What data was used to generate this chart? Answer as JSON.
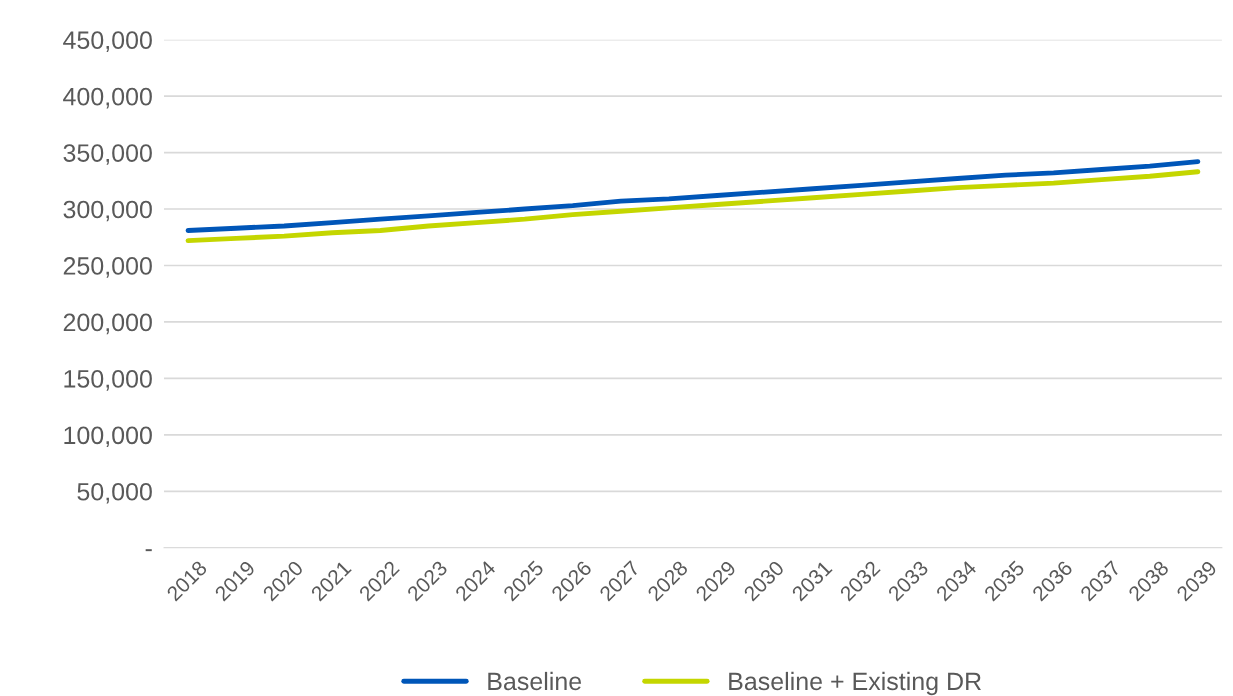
{
  "chart_data": {
    "type": "line",
    "categories": [
      "2018",
      "2019",
      "2020",
      "2021",
      "2022",
      "2023",
      "2024",
      "2025",
      "2026",
      "2027",
      "2028",
      "2029",
      "2030",
      "2031",
      "2032",
      "2033",
      "2034",
      "2035",
      "2036",
      "2037",
      "2038",
      "2039"
    ],
    "series": [
      {
        "name": "Baseline",
        "color": "#0056b8",
        "values": [
          281000,
          283000,
          285000,
          288000,
          291000,
          294000,
          297000,
          300000,
          303000,
          307000,
          309000,
          312000,
          315000,
          318000,
          321000,
          324000,
          327000,
          330000,
          332000,
          335000,
          338000,
          342000
        ]
      },
      {
        "name": "Baseline + Existing DR",
        "color": "#c4d600",
        "values": [
          272000,
          274000,
          276000,
          279000,
          281000,
          285000,
          288000,
          291000,
          295000,
          298000,
          301000,
          304000,
          307000,
          310000,
          313000,
          316000,
          319000,
          321000,
          323000,
          326000,
          329000,
          333000
        ]
      }
    ],
    "ylim": [
      0,
      450000
    ],
    "yticks": [
      {
        "value": 0,
        "label": "-"
      },
      {
        "value": 50000,
        "label": "50,000"
      },
      {
        "value": 100000,
        "label": "100,000"
      },
      {
        "value": 150000,
        "label": "150,000"
      },
      {
        "value": 200000,
        "label": "200,000"
      },
      {
        "value": 250000,
        "label": "250,000"
      },
      {
        "value": 300000,
        "label": "300,000"
      },
      {
        "value": 350000,
        "label": "350,000"
      },
      {
        "value": 400000,
        "label": "400,000"
      },
      {
        "value": 450000,
        "label": "450,000"
      }
    ],
    "grid": "y",
    "legend": "bottom",
    "marker": "none",
    "line_style": "solid"
  }
}
